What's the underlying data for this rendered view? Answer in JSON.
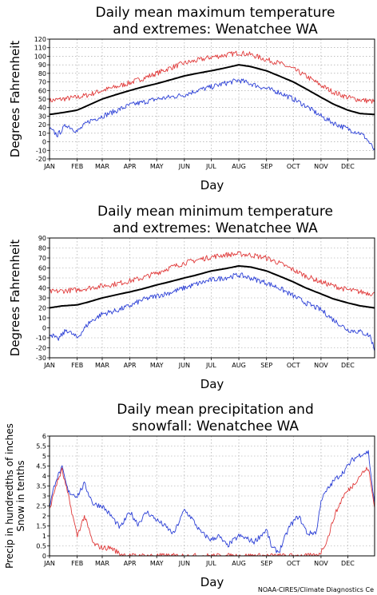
{
  "credit": "NOAA-CIRES/Climate Diagnostics Ce",
  "colors": {
    "mean": "#000000",
    "upper": "#e03a3a",
    "lower": "#2b3fd6",
    "grid": "#9a9a9a"
  },
  "chart_data": [
    {
      "type": "line",
      "title": [
        "Daily mean maximum temperature",
        "and extremes: Wenatchee WA"
      ],
      "xlabel": "Day",
      "ylabel": "Degrees Fahrenheit",
      "month_labels": [
        "JAN",
        "FEB",
        "MAR",
        "APR",
        "MAY",
        "JUN",
        "JUL",
        "AUG",
        "SEP",
        "OCT",
        "NOV",
        "DEC"
      ],
      "xlim": [
        1,
        365
      ],
      "ylim": [
        -20,
        120
      ],
      "yticks": [
        -20,
        -10,
        0,
        10,
        20,
        30,
        40,
        50,
        60,
        70,
        80,
        90,
        100,
        110,
        120
      ],
      "grid": true,
      "series": [
        {
          "key": "upper",
          "style": "noisy",
          "days": [
            1,
            15,
            32,
            45,
            60,
            75,
            91,
            105,
            121,
            135,
            152,
            166,
            182,
            196,
            213,
            226,
            244,
            258,
            274,
            288,
            305,
            319,
            335,
            349,
            365
          ],
          "values": [
            48,
            50,
            52,
            55,
            60,
            64,
            69,
            74,
            80,
            86,
            92,
            95,
            99,
            101,
            104,
            102,
            96,
            92,
            85,
            77,
            66,
            58,
            52,
            49,
            47
          ]
        },
        {
          "key": "mean",
          "style": "smooth",
          "days": [
            1,
            15,
            32,
            45,
            60,
            75,
            91,
            105,
            121,
            135,
            152,
            166,
            182,
            196,
            213,
            226,
            244,
            258,
            274,
            288,
            305,
            319,
            335,
            349,
            365
          ],
          "values": [
            32,
            34,
            37,
            43,
            50,
            55,
            60,
            64,
            68,
            72,
            77,
            80,
            83,
            86,
            90,
            88,
            83,
            77,
            70,
            62,
            52,
            44,
            37,
            33,
            32
          ]
        },
        {
          "key": "lower",
          "style": "noisy",
          "days": [
            1,
            10,
            20,
            32,
            45,
            60,
            75,
            91,
            105,
            121,
            135,
            152,
            166,
            182,
            196,
            213,
            226,
            244,
            258,
            274,
            288,
            305,
            319,
            335,
            349,
            355,
            365
          ],
          "values": [
            15,
            8,
            20,
            12,
            24,
            30,
            36,
            43,
            46,
            50,
            52,
            55,
            60,
            64,
            68,
            72,
            68,
            62,
            58,
            50,
            42,
            30,
            22,
            15,
            10,
            5,
            -10
          ]
        }
      ]
    },
    {
      "type": "line",
      "title": [
        "Daily mean minimum temperature",
        "and extremes: Wenatchee WA"
      ],
      "xlabel": "Day",
      "ylabel": "Degrees Fahrenheit",
      "month_labels": [
        "JAN",
        "FEB",
        "MAR",
        "APR",
        "MAY",
        "JUN",
        "JUL",
        "AUG",
        "SEP",
        "OCT",
        "NOV",
        "DEC"
      ],
      "xlim": [
        1,
        365
      ],
      "ylim": [
        -30,
        90
      ],
      "yticks": [
        -30,
        -20,
        -10,
        0,
        10,
        20,
        30,
        40,
        50,
        60,
        70,
        80,
        90
      ],
      "grid": true,
      "series": [
        {
          "key": "upper",
          "style": "noisy",
          "days": [
            1,
            15,
            32,
            45,
            60,
            75,
            91,
            105,
            121,
            135,
            152,
            166,
            182,
            196,
            213,
            226,
            244,
            258,
            274,
            288,
            305,
            319,
            335,
            349,
            365
          ],
          "values": [
            36,
            37,
            38,
            40,
            42,
            44,
            47,
            50,
            55,
            60,
            65,
            68,
            71,
            73,
            74,
            73,
            70,
            65,
            58,
            52,
            46,
            42,
            38,
            36,
            34
          ]
        },
        {
          "key": "mean",
          "style": "smooth",
          "days": [
            1,
            15,
            32,
            45,
            60,
            75,
            91,
            105,
            121,
            135,
            152,
            166,
            182,
            196,
            213,
            226,
            244,
            258,
            274,
            288,
            305,
            319,
            335,
            349,
            365
          ],
          "values": [
            20,
            22,
            23,
            26,
            30,
            33,
            36,
            39,
            43,
            46,
            50,
            53,
            57,
            59,
            62,
            61,
            57,
            52,
            46,
            40,
            34,
            29,
            25,
            22,
            20
          ]
        },
        {
          "key": "lower",
          "style": "noisy",
          "days": [
            1,
            10,
            20,
            32,
            45,
            60,
            75,
            91,
            105,
            121,
            135,
            152,
            166,
            182,
            196,
            213,
            226,
            244,
            258,
            274,
            288,
            305,
            319,
            335,
            349,
            360,
            365
          ],
          "values": [
            -5,
            -12,
            -2,
            -10,
            5,
            14,
            17,
            22,
            28,
            32,
            35,
            40,
            44,
            48,
            50,
            53,
            50,
            45,
            40,
            32,
            25,
            18,
            8,
            -2,
            -4,
            -8,
            -22
          ]
        }
      ]
    },
    {
      "type": "line",
      "title": [
        "Daily mean precipitation and",
        "snowfall: Wenatchee WA"
      ],
      "xlabel": "Day",
      "ylabel": [
        "Precip in hundredths of inches",
        "Snow in tenths"
      ],
      "month_labels": [
        "JAN",
        "FEB",
        "MAR",
        "APR",
        "MAY",
        "JUN",
        "JUL",
        "AUG",
        "SEP",
        "OCT",
        "NOV",
        "DEC"
      ],
      "xlim": [
        1,
        365
      ],
      "ylim": [
        0,
        6
      ],
      "yticks": [
        0,
        0.5,
        1,
        1.5,
        2,
        2.5,
        3,
        3.5,
        4,
        4.5,
        5,
        5.5,
        6
      ],
      "grid": true,
      "series": [
        {
          "key": "lower",
          "style": "noisy",
          "days": [
            1,
            8,
            15,
            22,
            32,
            40,
            50,
            60,
            70,
            80,
            91,
            100,
            110,
            121,
            130,
            140,
            152,
            160,
            170,
            182,
            190,
            200,
            213,
            220,
            230,
            244,
            250,
            258,
            270,
            280,
            290,
            300,
            305,
            312,
            320,
            330,
            340,
            350,
            358,
            365
          ],
          "values": [
            2.5,
            3.8,
            4.4,
            3.2,
            3.0,
            3.6,
            2.6,
            2.5,
            2.0,
            1.4,
            2.2,
            1.6,
            2.2,
            1.8,
            1.5,
            1.1,
            2.3,
            1.9,
            1.2,
            0.8,
            1.0,
            0.5,
            1.0,
            0.9,
            0.7,
            1.3,
            0.4,
            0.2,
            1.5,
            2.0,
            1.1,
            1.2,
            2.8,
            3.3,
            3.8,
            4.2,
            4.8,
            5.1,
            5.2,
            2.5
          ]
        },
        {
          "key": "upper",
          "style": "noisy",
          "days": [
            1,
            8,
            15,
            22,
            32,
            40,
            50,
            60,
            70,
            80,
            91,
            100,
            110,
            121,
            213,
            244,
            274,
            300,
            305,
            312,
            320,
            330,
            340,
            350,
            358,
            365
          ],
          "values": [
            2.3,
            3.5,
            4.3,
            3.0,
            1.0,
            2.0,
            0.6,
            0.4,
            0.4,
            0.1,
            0.0,
            0.0,
            0.0,
            0.0,
            0.0,
            0.0,
            0.0,
            0.0,
            0.2,
            0.8,
            2.0,
            3.0,
            3.5,
            4.1,
            4.4,
            2.4
          ]
        }
      ]
    }
  ]
}
